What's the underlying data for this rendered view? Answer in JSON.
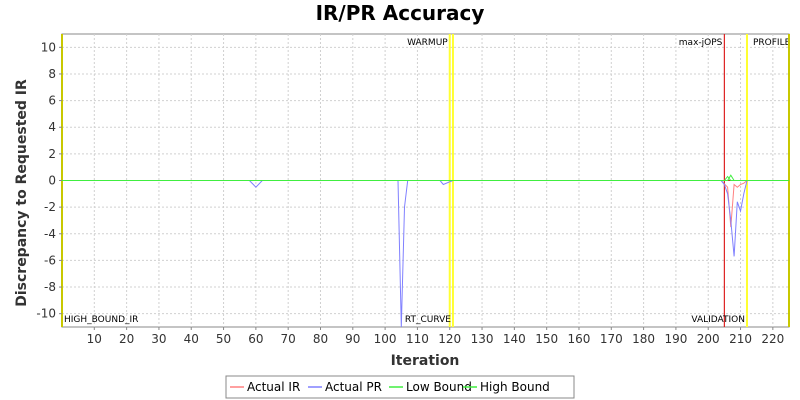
{
  "chart_data": {
    "type": "line",
    "title": "IR/PR Accuracy",
    "xlabel": "Iteration",
    "ylabel": "Discrepancy to Requested IR",
    "xlim": [
      0,
      225
    ],
    "ylim": [
      -11,
      11
    ],
    "xticks": [
      10,
      20,
      30,
      40,
      50,
      60,
      70,
      80,
      90,
      100,
      110,
      120,
      130,
      140,
      150,
      160,
      170,
      180,
      190,
      200,
      210,
      220
    ],
    "yticks": [
      -10,
      -8,
      -6,
      -4,
      -2,
      0,
      2,
      4,
      6,
      8,
      10
    ],
    "grid": true,
    "legend_position": "bottom",
    "series": [
      {
        "name": "Actual IR",
        "color": "#ff8080",
        "points": [
          [
            0,
            0
          ],
          [
            204,
            0
          ],
          [
            206,
            -0.5
          ],
          [
            207,
            -3.5
          ],
          [
            208,
            -0.3
          ],
          [
            209,
            -0.5
          ],
          [
            210,
            -0.3
          ],
          [
            211,
            -0.2
          ],
          [
            212,
            0
          ],
          [
            225,
            0
          ]
        ]
      },
      {
        "name": "Actual PR",
        "color": "#8080ff",
        "points": [
          [
            0,
            0
          ],
          [
            58,
            0
          ],
          [
            60,
            -0.5
          ],
          [
            62,
            0
          ],
          [
            102,
            0
          ],
          [
            104,
            0
          ],
          [
            105,
            -11
          ],
          [
            106,
            -2
          ],
          [
            107,
            0
          ],
          [
            115,
            0
          ],
          [
            117,
            0
          ],
          [
            118,
            -0.3
          ],
          [
            120,
            -0.1
          ],
          [
            121,
            0
          ],
          [
            204,
            0
          ],
          [
            205,
            -0.3
          ],
          [
            206,
            -1.0
          ],
          [
            207,
            -3.0
          ],
          [
            208,
            -5.7
          ],
          [
            209,
            -1.6
          ],
          [
            210,
            -2.3
          ],
          [
            211,
            -1.0
          ],
          [
            212,
            0
          ],
          [
            225,
            0
          ]
        ]
      },
      {
        "name": "Low Bound",
        "color": "#40ee40",
        "points": [
          [
            0,
            0
          ],
          [
            205,
            0
          ],
          [
            206,
            0.3
          ],
          [
            207,
            0
          ],
          [
            225,
            0
          ]
        ]
      },
      {
        "name": "High Bound",
        "color": "#40ee40",
        "points": [
          [
            0,
            0
          ],
          [
            206,
            0
          ],
          [
            207,
            0.4
          ],
          [
            208,
            0
          ],
          [
            225,
            0
          ]
        ]
      }
    ],
    "markers": [
      {
        "x": 0,
        "label": "HIGH_BOUND_IR",
        "color": "#c8c800",
        "label_pos": "bottom-right"
      },
      {
        "x": 120,
        "label": "WARMUP",
        "color": "#ffff33",
        "label_pos": "top-left"
      },
      {
        "x": 121,
        "label": "RT_CURVE",
        "color": "#ffff33",
        "label_pos": "bottom-left"
      },
      {
        "x": 205,
        "label": "max-jOPS",
        "color": "#dd2222",
        "label_pos": "top-left"
      },
      {
        "x": 212,
        "label": "VALIDATION",
        "color": "#ffff33",
        "label_pos": "bottom-left"
      },
      {
        "x": 212,
        "label": "PROFILE",
        "color": "#ffff33",
        "label_pos": "top-right"
      },
      {
        "x": 225,
        "label": "",
        "color": "#c8c800",
        "label_pos": "none"
      }
    ],
    "zero_line_color": "#b04020"
  }
}
